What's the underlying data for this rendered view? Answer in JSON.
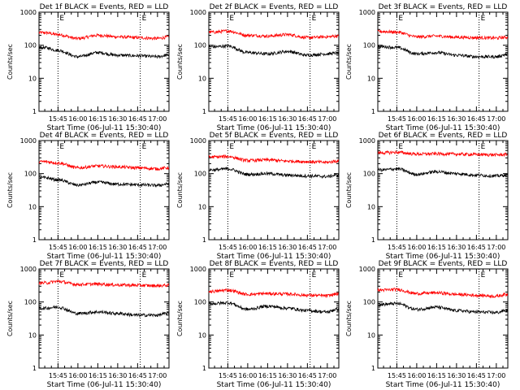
{
  "figure": {
    "xlabel": "Start Time (06-Jul-11 15:30:40)",
    "ylabel": "Counts/sec",
    "x_tick_labels": [
      "15:45",
      "16:00",
      "16:15",
      "16:30",
      "16:45",
      "17:00"
    ],
    "y_tick_labels": [
      "1",
      "10",
      "100",
      "1000"
    ],
    "marker_label": "E"
  },
  "chart_data": [
    {
      "type": "line",
      "title": "Det 1f BLACK = Events, RED = LLD",
      "y_scale": "log",
      "ylim": [
        1,
        1000
      ],
      "x": [
        "15:35",
        "15:45",
        "16:00",
        "16:15",
        "16:30",
        "16:45",
        "17:00",
        "17:07"
      ],
      "series": [
        {
          "name": "LLD",
          "color": "#ff0000",
          "values": [
            240,
            210,
            160,
            200,
            180,
            170,
            160,
            175
          ]
        },
        {
          "name": "Events",
          "color": "#000000",
          "values": [
            85,
            70,
            45,
            60,
            50,
            48,
            45,
            50
          ]
        }
      ]
    },
    {
      "type": "line",
      "title": "Det 2f BLACK = Events, RED = LLD",
      "y_scale": "log",
      "ylim": [
        1,
        1000
      ],
      "x": [
        "15:35",
        "15:45",
        "16:00",
        "16:15",
        "16:30",
        "16:45",
        "17:00",
        "17:07"
      ],
      "series": [
        {
          "name": "LLD",
          "color": "#ff0000",
          "values": [
            250,
            270,
            200,
            190,
            210,
            170,
            180,
            190
          ]
        },
        {
          "name": "Events",
          "color": "#000000",
          "values": [
            90,
            95,
            60,
            55,
            65,
            50,
            55,
            58
          ]
        }
      ]
    },
    {
      "type": "line",
      "title": "Det 3f BLACK = Events, RED = LLD",
      "y_scale": "log",
      "ylim": [
        1,
        1000
      ],
      "x": [
        "15:35",
        "15:45",
        "16:00",
        "16:15",
        "16:30",
        "16:45",
        "17:00",
        "17:07"
      ],
      "series": [
        {
          "name": "LLD",
          "color": "#ff0000",
          "values": [
            260,
            250,
            180,
            190,
            175,
            170,
            165,
            175
          ]
        },
        {
          "name": "Events",
          "color": "#000000",
          "values": [
            90,
            85,
            55,
            60,
            50,
            45,
            45,
            52
          ]
        }
      ]
    },
    {
      "type": "line",
      "title": "Det 4f BLACK = Events, RED = LLD",
      "y_scale": "log",
      "ylim": [
        1,
        1000
      ],
      "x": [
        "15:35",
        "15:45",
        "16:00",
        "16:15",
        "16:30",
        "16:45",
        "17:00",
        "17:07"
      ],
      "series": [
        {
          "name": "LLD",
          "color": "#ff0000",
          "values": [
            230,
            210,
            150,
            170,
            160,
            150,
            140,
            150
          ]
        },
        {
          "name": "Events",
          "color": "#000000",
          "values": [
            75,
            65,
            45,
            55,
            48,
            46,
            44,
            48
          ]
        }
      ]
    },
    {
      "type": "line",
      "title": "Det 5f BLACK = Events, RED = LLD",
      "y_scale": "log",
      "ylim": [
        1,
        1000
      ],
      "x": [
        "15:35",
        "15:45",
        "16:00",
        "16:15",
        "16:30",
        "16:45",
        "17:00",
        "17:07"
      ],
      "series": [
        {
          "name": "LLD",
          "color": "#ff0000",
          "values": [
            320,
            330,
            250,
            260,
            240,
            230,
            220,
            240
          ]
        },
        {
          "name": "Events",
          "color": "#000000",
          "values": [
            130,
            140,
            95,
            100,
            90,
            85,
            82,
            90
          ]
        }
      ]
    },
    {
      "type": "line",
      "title": "Det 6f BLACK = Events, RED = LLD",
      "y_scale": "log",
      "ylim": [
        1,
        1000
      ],
      "x": [
        "15:35",
        "15:45",
        "16:00",
        "16:15",
        "16:30",
        "16:45",
        "17:00",
        "17:07"
      ],
      "series": [
        {
          "name": "LLD",
          "color": "#ff0000",
          "values": [
            430,
            440,
            390,
            400,
            390,
            380,
            370,
            380
          ]
        },
        {
          "name": "Events",
          "color": "#000000",
          "values": [
            130,
            140,
            95,
            115,
            100,
            90,
            85,
            90
          ]
        }
      ]
    },
    {
      "type": "line",
      "title": "Det 7f BLACK = Events, RED = LLD",
      "y_scale": "log",
      "ylim": [
        1,
        1000
      ],
      "x": [
        "15:35",
        "15:45",
        "16:00",
        "16:15",
        "16:30",
        "16:45",
        "17:00",
        "17:07"
      ],
      "series": [
        {
          "name": "LLD",
          "color": "#ff0000",
          "values": [
            380,
            420,
            340,
            350,
            330,
            320,
            310,
            320
          ]
        },
        {
          "name": "Events",
          "color": "#000000",
          "values": [
            65,
            70,
            45,
            50,
            45,
            40,
            40,
            45
          ]
        }
      ]
    },
    {
      "type": "line",
      "title": "Det 8f BLACK = Events, RED = LLD",
      "y_scale": "log",
      "ylim": [
        1,
        1000
      ],
      "x": [
        "15:35",
        "15:45",
        "16:00",
        "16:15",
        "16:30",
        "16:45",
        "17:00",
        "17:07"
      ],
      "series": [
        {
          "name": "LLD",
          "color": "#ff0000",
          "values": [
            210,
            230,
            170,
            180,
            175,
            160,
            155,
            175
          ]
        },
        {
          "name": "Events",
          "color": "#000000",
          "values": [
            90,
            95,
            60,
            75,
            65,
            55,
            50,
            60
          ]
        }
      ]
    },
    {
      "type": "line",
      "title": "Det 9f BLACK = Events, RED = LLD",
      "y_scale": "log",
      "ylim": [
        1,
        1000
      ],
      "x": [
        "15:35",
        "15:45",
        "16:00",
        "16:15",
        "16:30",
        "16:45",
        "17:00",
        "17:07"
      ],
      "series": [
        {
          "name": "LLD",
          "color": "#ff0000",
          "values": [
            230,
            240,
            180,
            190,
            170,
            160,
            150,
            170
          ]
        },
        {
          "name": "Events",
          "color": "#000000",
          "values": [
            85,
            90,
            60,
            70,
            55,
            50,
            48,
            55
          ]
        }
      ]
    }
  ]
}
